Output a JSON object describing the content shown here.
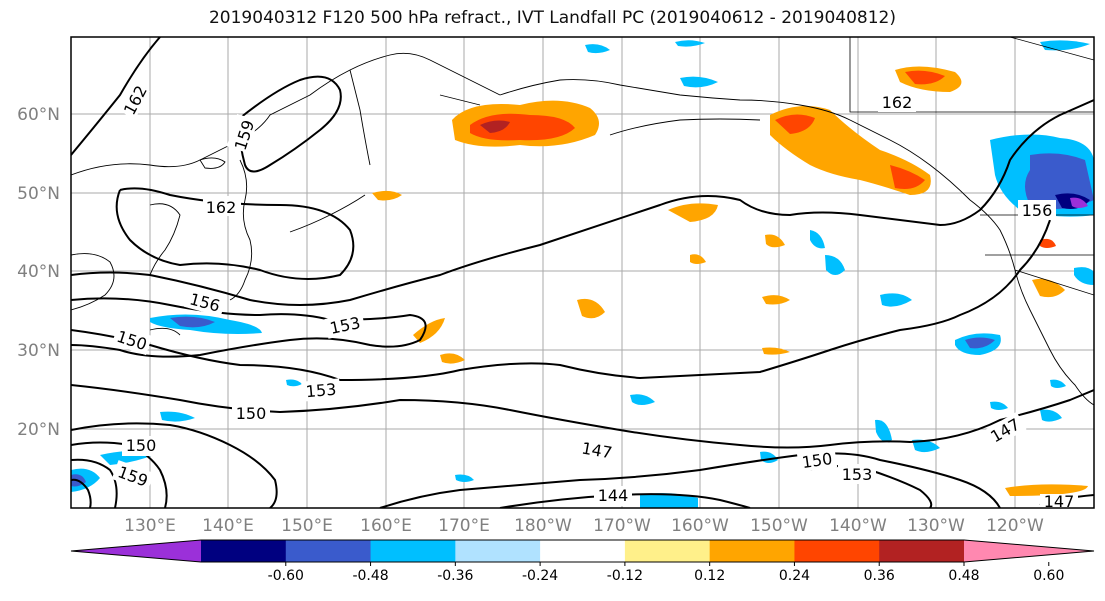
{
  "title": "2019040312 F120 500 hPa refract., IVT Landfall PC (2019040612 - 2019040812)",
  "lat_labels": [
    "60°N",
    "50°N",
    "40°N",
    "30°N",
    "20°N"
  ],
  "lon_labels": [
    "130°E",
    "140°E",
    "150°E",
    "160°E",
    "170°E",
    "180°W",
    "170°W",
    "160°W",
    "150°W",
    "140°W",
    "130°W",
    "120°W"
  ],
  "contour_labels": [
    {
      "text": "162",
      "cls": "c"
    },
    {
      "text": "159",
      "cls": "c"
    },
    {
      "text": "162",
      "cls": "c"
    },
    {
      "text": "162",
      "cls": "c"
    },
    {
      "text": "156",
      "cls": "c"
    },
    {
      "text": "150",
      "cls": "c"
    },
    {
      "text": "153",
      "cls": "c"
    },
    {
      "text": "153",
      "cls": "c"
    },
    {
      "text": "150",
      "cls": "c"
    },
    {
      "text": "150",
      "cls": "c"
    },
    {
      "text": "159",
      "cls": "c"
    },
    {
      "text": "147",
      "cls": "c"
    },
    {
      "text": "144",
      "cls": "c"
    },
    {
      "text": "150",
      "cls": "c"
    },
    {
      "text": "153",
      "cls": "c"
    },
    {
      "text": "147",
      "cls": "c"
    },
    {
      "text": "147",
      "cls": "c"
    },
    {
      "text": "156",
      "cls": "c"
    }
  ],
  "colorbar": {
    "colors": [
      "#9b30d9",
      "#000080",
      "#3a5bcc",
      "#00bfff",
      "#b0e2ff",
      "#ffffff",
      "#fff08a",
      "#ffa500",
      "#ff4500",
      "#b22222",
      "#ff88b0"
    ],
    "ticks": [
      "-0.60",
      "-0.48",
      "-0.36",
      "-0.24",
      "-0.12",
      "0.12",
      "0.24",
      "0.36",
      "0.48",
      "0.60"
    ]
  }
}
